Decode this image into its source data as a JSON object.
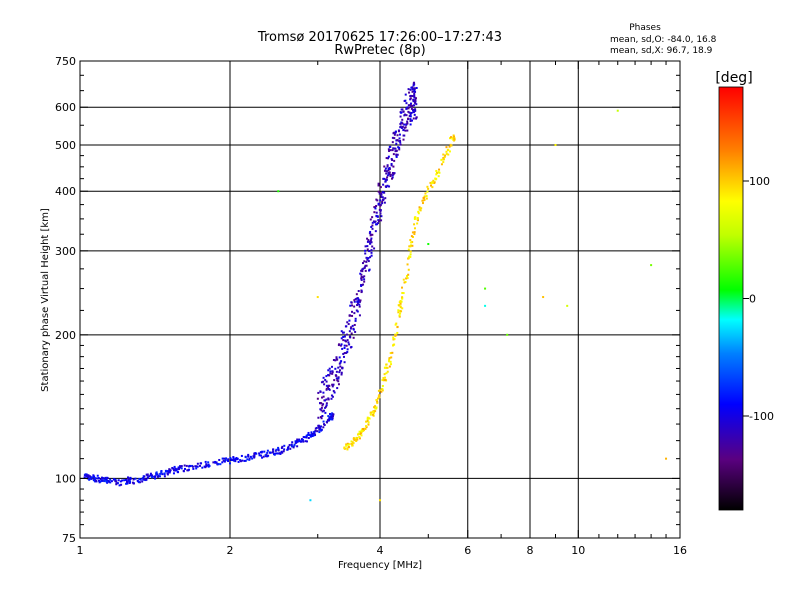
{
  "chart_data": {
    "type": "scatter",
    "title": "Tromsø 20170625 17:26:00–17:27:43",
    "subtitle": "RwPretec (8p)",
    "xlabel": "Frequency [MHz]",
    "ylabel": "Stationary phase Virtual Height [km]",
    "x_scale": "log2",
    "y_scale": "log",
    "xlim": [
      1,
      16
    ],
    "ylim": [
      75,
      750
    ],
    "grid": true,
    "xticks": [
      1,
      2,
      4,
      6,
      8,
      10,
      16
    ],
    "xtick_labels": [
      "1",
      "2",
      "4",
      "6",
      "8",
      "10",
      "16"
    ],
    "xgrid_lines": [
      2,
      4,
      6,
      8,
      10
    ],
    "xminor_ticks": [
      3,
      5,
      7,
      9,
      11,
      12,
      13,
      14,
      15
    ],
    "yticks": [
      75,
      100,
      200,
      300,
      400,
      500,
      600,
      750
    ],
    "ytick_labels": [
      "75",
      "100",
      "200",
      "300",
      "400",
      "500",
      "600",
      "750"
    ],
    "ygrid_lines": [
      100,
      200,
      300,
      400,
      500,
      600
    ],
    "legend": {
      "title": "Phases",
      "lines": [
        "mean, sd,O: -84.0, 16.8",
        "mean, sd,X: 96.7, 18.9"
      ]
    },
    "colorbar": {
      "label": "[deg]",
      "ticks": [
        100,
        0,
        -100
      ],
      "tick_labels": [
        "100",
        "0",
        "-100"
      ],
      "range": [
        -180,
        180
      ]
    },
    "series": [
      {
        "name": "O-trace low (F1, cyan-blue)",
        "phase_deg": -95,
        "x": [
          1.02,
          1.05,
          1.08,
          1.12,
          1.15,
          1.2,
          1.25,
          1.3,
          1.35,
          1.4,
          1.45,
          1.5,
          1.55,
          1.6,
          1.7,
          1.8,
          1.9,
          2.0,
          2.1,
          2.2,
          2.3,
          2.4,
          2.5,
          2.6,
          2.7,
          2.8,
          2.9,
          3.0,
          3.1,
          3.2
        ],
        "y": [
          101,
          100,
          100,
          99,
          99,
          98,
          99,
          99,
          100,
          101,
          102,
          103,
          104,
          105,
          106,
          107,
          108,
          109,
          110,
          111,
          112,
          113,
          114,
          116,
          118,
          120,
          123,
          126,
          130,
          135
        ]
      },
      {
        "name": "O-trace F2 (blue)",
        "phase_deg": -115,
        "x": [
          3.0,
          3.1,
          3.2,
          3.3,
          3.4,
          3.5,
          3.6,
          3.7,
          3.8,
          3.9,
          4.0,
          4.1,
          4.2,
          4.3,
          4.4,
          4.5,
          4.6,
          4.7
        ],
        "y": [
          140,
          150,
          160,
          175,
          190,
          210,
          230,
          260,
          300,
          340,
          380,
          420,
          460,
          500,
          540,
          580,
          600,
          620
        ]
      },
      {
        "name": "X-trace (yellow-orange)",
        "phase_deg": 95,
        "x": [
          3.4,
          3.5,
          3.6,
          3.7,
          3.8,
          3.9,
          4.0,
          4.1,
          4.2,
          4.3,
          4.4,
          4.5,
          4.6,
          4.7,
          4.8,
          5.0,
          5.2,
          5.4,
          5.6
        ],
        "y": [
          116,
          118,
          122,
          126,
          132,
          140,
          150,
          165,
          180,
          200,
          230,
          260,
          300,
          340,
          370,
          400,
          430,
          470,
          520
        ]
      },
      {
        "name": "Scattered echoes",
        "phase_deg": 30,
        "x": [
          2.5,
          2.9,
          6.5,
          6.5,
          7.2,
          8.5,
          9.0,
          9.5,
          12.0,
          14.0,
          15.0,
          3.0,
          4.0,
          5.0,
          4.3
        ],
        "y": [
          400,
          90,
          250,
          230,
          200,
          240,
          500,
          230,
          590,
          280,
          110,
          240,
          90,
          310,
          210
        ]
      }
    ]
  }
}
